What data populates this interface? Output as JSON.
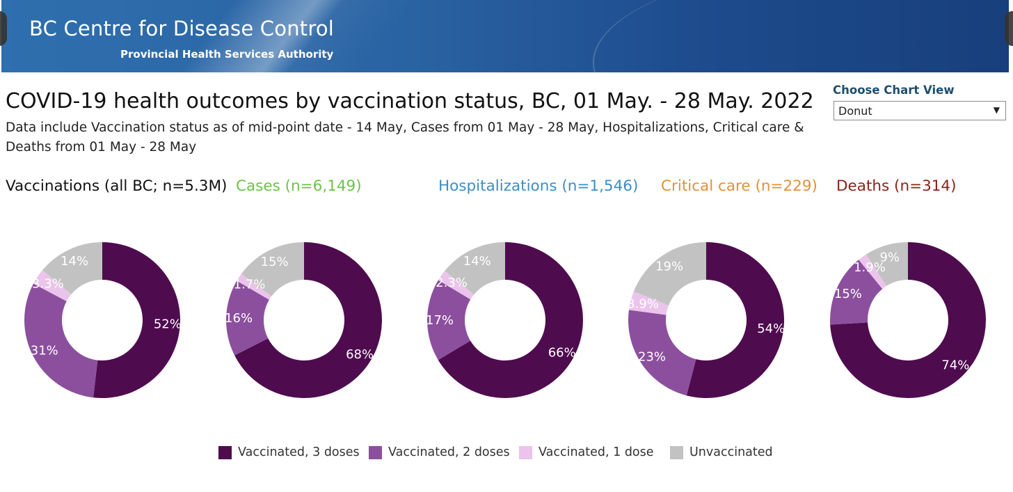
{
  "header": {
    "org_name": "BC Centre for Disease Control",
    "org_sub": "Provincial Health Services Authority"
  },
  "title": "COVID-19 health outcomes by vaccination status, BC,  01 May. - 28 May. 2022",
  "subtitle": "Data include Vaccination status as of mid-point date - 14 May, Cases  from  01 May - 28 May, Hospitalizations, Critical care & Deaths from 01 May - 28 May",
  "control": {
    "label": "Choose Chart View",
    "selected": "Donut",
    "arrow_icon": "triangle-down-icon"
  },
  "colors": {
    "vax3": "#4e0c4f",
    "vax2": "#8c4f9e",
    "vax1": "#ebc4ec",
    "unvax": "#c2c2c2"
  },
  "chart_data": [
    {
      "type": "pie",
      "style": "donut",
      "title": "Vaccinations (all BC; n=5.3M)",
      "title_color": "#111111",
      "categories": [
        "Vaccinated, 3 doses",
        "Vaccinated, 2 doses",
        "Vaccinated, 1 dose",
        "Unvaccinated"
      ],
      "values": [
        52,
        31,
        3.3,
        14
      ],
      "labels": [
        "52%",
        "31%",
        "3.3%",
        "14%"
      ]
    },
    {
      "type": "pie",
      "style": "donut",
      "title": "Cases (n=6,149)",
      "title_color": "#6cc24a",
      "categories": [
        "Vaccinated, 3 doses",
        "Vaccinated, 2 doses",
        "Vaccinated, 1 dose",
        "Unvaccinated"
      ],
      "values": [
        68,
        16,
        1.7,
        15
      ],
      "labels": [
        "68%",
        "16%",
        "1.7%",
        "15%"
      ]
    },
    {
      "type": "pie",
      "style": "donut",
      "title": "Hospitalizations (n=1,546)",
      "title_color": "#3d8dc4",
      "categories": [
        "Vaccinated, 3 doses",
        "Vaccinated, 2 doses",
        "Vaccinated, 1 dose",
        "Unvaccinated"
      ],
      "values": [
        66,
        17,
        2.3,
        14
      ],
      "labels": [
        "66%",
        "17%",
        "2.3%",
        "14%"
      ]
    },
    {
      "type": "pie",
      "style": "donut",
      "title": "Critical care (n=229)",
      "title_color": "#e1913a",
      "categories": [
        "Vaccinated, 3 doses",
        "Vaccinated, 2 doses",
        "Vaccinated, 1 dose",
        "Unvaccinated"
      ],
      "values": [
        54,
        23,
        3.9,
        19
      ],
      "labels": [
        "54%",
        "23%",
        "3.9%",
        "19%"
      ]
    },
    {
      "type": "pie",
      "style": "donut",
      "title": "Deaths (n=314)",
      "title_color": "#8b2418",
      "categories": [
        "Vaccinated, 3 doses",
        "Vaccinated, 2 doses",
        "Vaccinated, 1 dose",
        "Unvaccinated"
      ],
      "values": [
        74,
        15,
        1.9,
        9
      ],
      "labels": [
        "74%",
        "15%",
        "1.9%",
        "9%"
      ]
    }
  ],
  "legend": [
    {
      "label": "Vaccinated, 3 doses",
      "color": "#4e0c4f"
    },
    {
      "label": "Vaccinated, 2 doses",
      "color": "#8c4f9e"
    },
    {
      "label": "Vaccinated, 1 dose",
      "color": "#ebc4ec"
    },
    {
      "label": "Unvaccinated",
      "color": "#c2c2c2"
    }
  ]
}
